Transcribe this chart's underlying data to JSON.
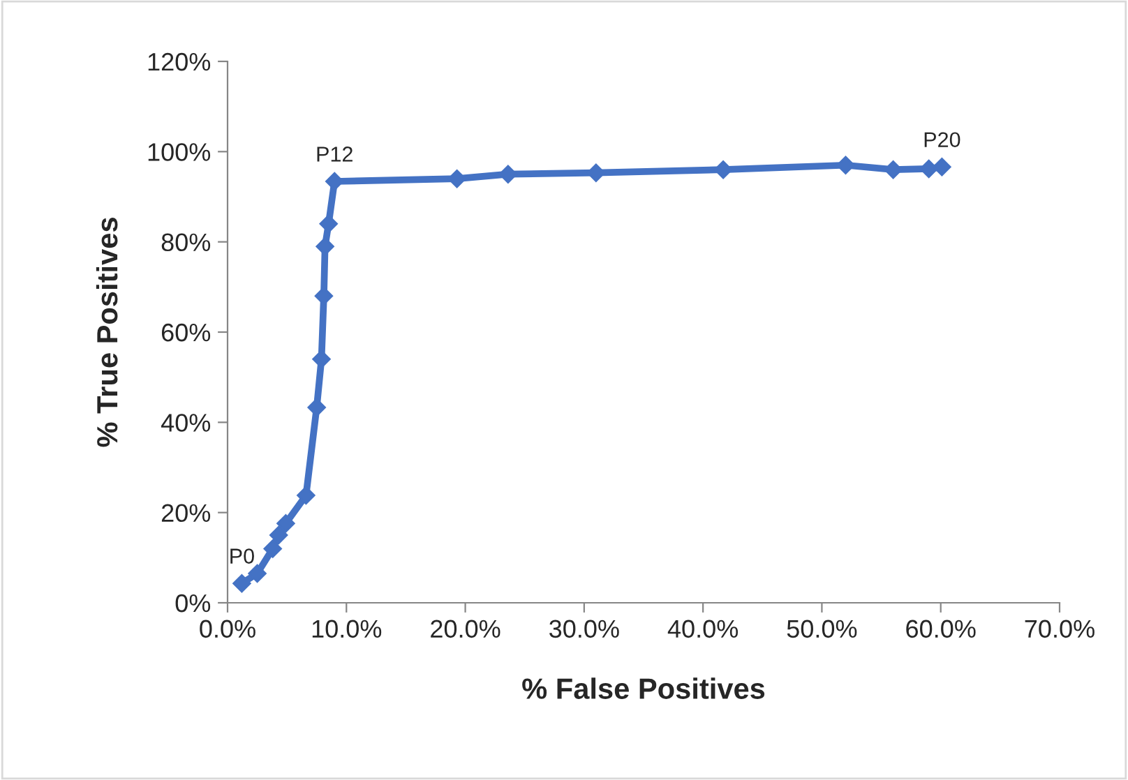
{
  "chart_data": {
    "type": "line",
    "xlabel": "% False Positives",
    "ylabel": "% True Positives",
    "series": [
      {
        "color": "#4472c4",
        "marker": "diamond",
        "x": [
          1.2,
          2.5,
          3.8,
          4.3,
          4.9,
          6.6,
          7.5,
          7.9,
          8.1,
          8.2,
          8.5,
          9.0,
          19.3,
          23.6,
          31.0,
          41.7,
          52.0,
          56.0,
          59.0,
          60.1
        ],
        "values": [
          4.3,
          6.5,
          12,
          15,
          17.6,
          23.8,
          43.3,
          54,
          68,
          79,
          84,
          93.4,
          94,
          95,
          95.3,
          96,
          97,
          96,
          96.2,
          96.6
        ]
      }
    ],
    "annotations": [
      {
        "text": "P0",
        "x": 1.2,
        "y": 4.3
      },
      {
        "text": "P12",
        "x": 9.0,
        "y": 93.4
      },
      {
        "text": "P20",
        "x": 60.1,
        "y": 96.6
      }
    ],
    "xlim": [
      0,
      70
    ],
    "ylim": [
      0,
      120
    ],
    "xticks": [
      {
        "value": 0,
        "label": "0.0%"
      },
      {
        "value": 10,
        "label": "10.0%"
      },
      {
        "value": 20,
        "label": "20.0%"
      },
      {
        "value": 30,
        "label": "30.0%"
      },
      {
        "value": 40,
        "label": "40.0%"
      },
      {
        "value": 50,
        "label": "50.0%"
      },
      {
        "value": 60,
        "label": "60.0%"
      },
      {
        "value": 70,
        "label": "70.0%"
      }
    ],
    "yticks": [
      {
        "value": 0,
        "label": "0%"
      },
      {
        "value": 20,
        "label": "20%"
      },
      {
        "value": 40,
        "label": "40%"
      },
      {
        "value": 60,
        "label": "60%"
      },
      {
        "value": 80,
        "label": "80%"
      },
      {
        "value": 100,
        "label": "100%"
      },
      {
        "value": 120,
        "label": "120%"
      }
    ],
    "grid": false,
    "legend": false
  }
}
